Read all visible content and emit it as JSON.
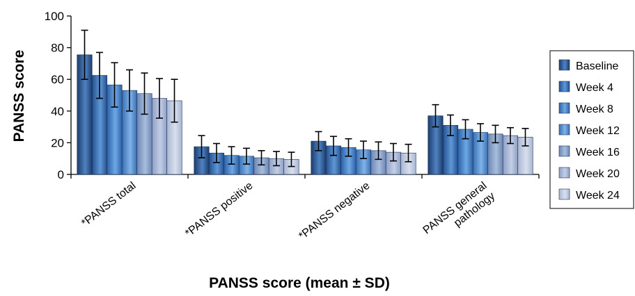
{
  "chart_data": {
    "type": "bar",
    "title": "",
    "xlabel": "PANSS score (mean ± SD)",
    "ylabel": "PANSS score",
    "ylim": [
      0,
      100
    ],
    "yticks": [
      0,
      20,
      40,
      60,
      80,
      100
    ],
    "grid": false,
    "legend_position": "right",
    "categories": [
      [
        "*PANSS total"
      ],
      [
        "*PANSS positive"
      ],
      [
        "*PANSS negative"
      ],
      [
        "PANSS general",
        "pathology"
      ]
    ],
    "series": [
      {
        "name": "Baseline",
        "color_dark": "#1c3d6b",
        "color_light": "#4f82c3",
        "values": [
          75.5,
          17.5,
          21,
          37
        ],
        "errors": [
          15.5,
          7,
          6,
          7
        ]
      },
      {
        "name": "Week 4",
        "color_dark": "#245090",
        "color_light": "#5f97d6",
        "values": [
          62.5,
          13.5,
          18,
          31
        ],
        "errors": [
          14.5,
          6,
          6,
          6.5
        ]
      },
      {
        "name": "Week 8",
        "color_dark": "#2d62a8",
        "color_light": "#6ea8e4",
        "values": [
          56.5,
          12,
          17,
          28.5
        ],
        "errors": [
          14,
          5.5,
          5.5,
          6
        ]
      },
      {
        "name": "Week 12",
        "color_dark": "#3a6fb3",
        "color_light": "#7fb3e8",
        "values": [
          53,
          11.5,
          15.5,
          26.5
        ],
        "errors": [
          13,
          5,
          5.5,
          5.5
        ]
      },
      {
        "name": "Week 16",
        "color_dark": "#6e86b3",
        "color_light": "#a8bedd",
        "values": [
          51,
          10.5,
          15,
          25.5
        ],
        "errors": [
          13,
          4.5,
          5.5,
          5.5
        ]
      },
      {
        "name": "Week 20",
        "color_dark": "#8e9fc4",
        "color_light": "#c3cfe6",
        "values": [
          48,
          10,
          14,
          24.5
        ],
        "errors": [
          12.5,
          4.5,
          5.5,
          5
        ]
      },
      {
        "name": "Week 24",
        "color_dark": "#a9b6d2",
        "color_light": "#d8e0ef",
        "values": [
          46.5,
          9.5,
          13.5,
          23.5
        ],
        "errors": [
          13.5,
          4.5,
          5.5,
          5.5
        ]
      }
    ]
  }
}
